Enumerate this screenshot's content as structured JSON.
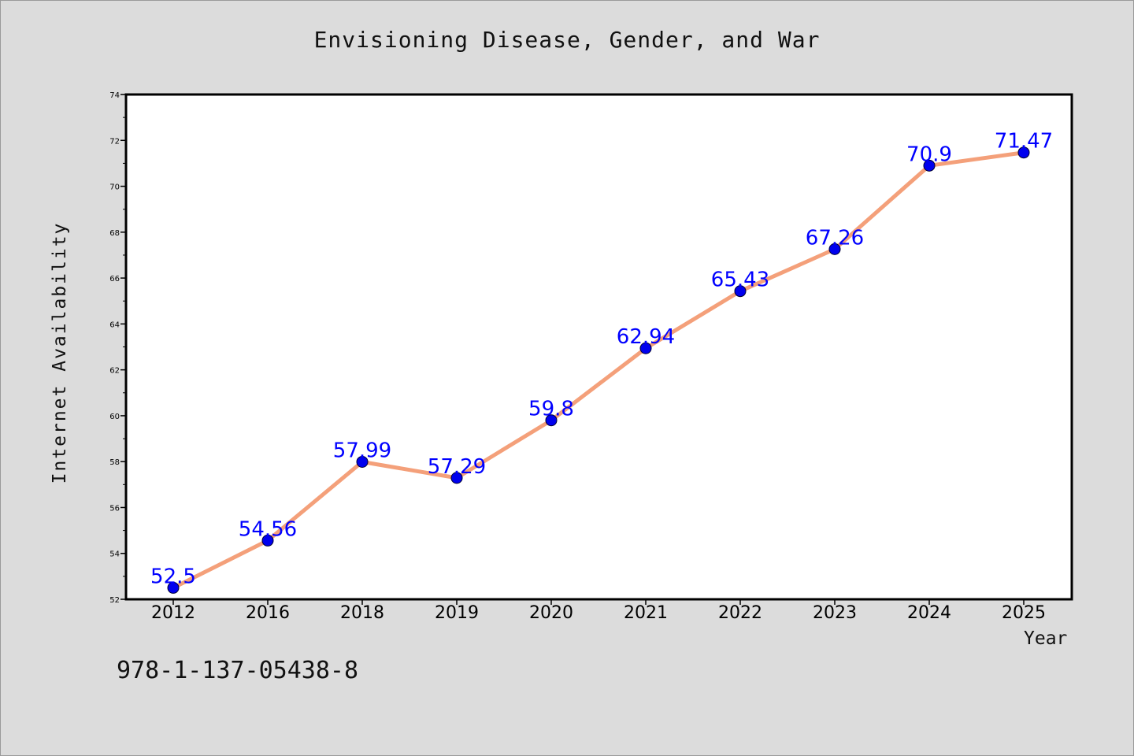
{
  "chart_data": {
    "type": "line",
    "title": "Envisioning Disease, Gender, and War",
    "xlabel": "Year",
    "ylabel": "Internet Availability",
    "categories": [
      "2012",
      "2016",
      "2018",
      "2019",
      "2020",
      "2021",
      "2022",
      "2023",
      "2024",
      "2025"
    ],
    "values": [
      52.5,
      54.56,
      57.99,
      57.29,
      59.8,
      62.94,
      65.43,
      67.26,
      70.9,
      71.47
    ],
    "data_labels": [
      "52.5",
      "54.56",
      "57.99",
      "57.29",
      "59.8",
      "62.94",
      "65.43",
      "67.26",
      "70.9",
      "71.47"
    ],
    "ylim": [
      52,
      74
    ],
    "yticks": [
      52,
      54,
      56,
      58,
      60,
      62,
      64,
      66,
      68,
      70,
      72,
      74
    ],
    "grid": false,
    "colors": {
      "line": "#f4a07a",
      "marker": "#0000ee",
      "label": "#0000ff",
      "plot_background": "#ffffff",
      "page_background": "#dcdcdc"
    }
  },
  "footer_code": "978-1-137-05438-8"
}
